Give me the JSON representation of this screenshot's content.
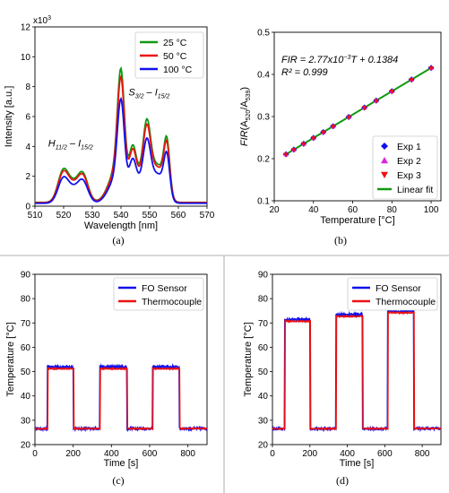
{
  "captions": [
    "(a)",
    "(b)",
    "(c)",
    "(d)"
  ],
  "colors": {
    "red": "#ee1111",
    "blue": "#1111ee",
    "green": "#119911",
    "magenta": "#dd22dd"
  },
  "chart_data": [
    {
      "id": "a",
      "type": "line",
      "xlabel": "Wavelength [nm]",
      "ylabel": "Intensity [a.u.]",
      "y_multiplier_label": "x10",
      "y_multiplier_exp": "3",
      "xlim": [
        510,
        570
      ],
      "ylim": [
        0,
        12
      ],
      "xticks": [
        510,
        520,
        530,
        540,
        550,
        560,
        570
      ],
      "yticks": [
        0,
        2,
        4,
        6,
        8,
        10,
        12
      ],
      "legend_position": "top-right",
      "series": [
        {
          "name": "25 °C",
          "color": "#119911",
          "scale": 1.0
        },
        {
          "name": "50 °C",
          "color": "#ee1111",
          "scale": 0.94
        },
        {
          "name": "100 °C",
          "color": "#1111ee",
          "scale": 0.78
        }
      ],
      "annotations": [
        {
          "text": "H",
          "sub": "11/2",
          "mid": " – I",
          "sub2": "15/2",
          "at": [
            524,
            4.0
          ]
        },
        {
          "text": "S",
          "sub": "3/2",
          "mid": " – I",
          "sub2": "15/2",
          "at": [
            552,
            7.4
          ]
        }
      ]
    },
    {
      "id": "b",
      "type": "scatter",
      "xlabel": "Temperature [°C]",
      "ylabel_main": "FIR",
      "ylabel_num": "520",
      "ylabel_den": "539",
      "xlim": [
        20,
        105
      ],
      "ylim": [
        0.1,
        0.5
      ],
      "xticks": [
        20,
        40,
        60,
        80,
        100
      ],
      "yticks": [
        0.1,
        0.2,
        0.3,
        0.4,
        0.5
      ],
      "legend_position": "bottom-right",
      "equation": "FIR = 2.77x10",
      "equation_exp": "−3",
      "equation_rest": "T + 0.1384",
      "r2": "R² = 0.999",
      "fit": {
        "slope": 0.00277,
        "intercept": 0.1384,
        "x_range": [
          26,
          100
        ]
      },
      "x": [
        26,
        30,
        35,
        40,
        45,
        50,
        58,
        66,
        72,
        80,
        90,
        100
      ],
      "series": [
        {
          "name": "Exp 1",
          "marker": "diamond",
          "color": "#1111ee"
        },
        {
          "name": "Exp 2",
          "marker": "triangle-up",
          "color": "#dd22dd"
        },
        {
          "name": "Exp 3",
          "marker": "triangle-down",
          "color": "#ee1111"
        },
        {
          "name": "Linear fit",
          "marker": "line",
          "color": "#119911"
        }
      ]
    },
    {
      "id": "c",
      "type": "line",
      "xlabel": "Time [s]",
      "ylabel": "Temperature [°C]",
      "xlim": [
        0,
        900
      ],
      "ylim": [
        20,
        90
      ],
      "xticks": [
        0,
        200,
        400,
        600,
        800
      ],
      "yticks": [
        20,
        30,
        40,
        50,
        60,
        70,
        80,
        90
      ],
      "legend_position": "top-right",
      "baseline": 26.5,
      "plateau": 51.5,
      "on_intervals": [
        [
          65,
          200
        ],
        [
          340,
          480
        ],
        [
          615,
          755
        ]
      ],
      "series": [
        {
          "name": "FO Sensor",
          "color": "#1111ee"
        },
        {
          "name": "Thermocouple",
          "color": "#ee1111"
        }
      ]
    },
    {
      "id": "d",
      "type": "line",
      "xlabel": "Time [s]",
      "ylabel": "Temperature [°C]",
      "xlim": [
        0,
        900
      ],
      "ylim": [
        20,
        90
      ],
      "xticks": [
        0,
        200,
        400,
        600,
        800
      ],
      "yticks": [
        20,
        30,
        40,
        50,
        60,
        70,
        80,
        90
      ],
      "legend_position": "top-right",
      "baseline": 26.5,
      "plateaus": [
        71,
        73,
        74.5
      ],
      "on_intervals": [
        [
          65,
          200
        ],
        [
          340,
          480
        ],
        [
          615,
          755
        ]
      ],
      "series": [
        {
          "name": "FO Sensor",
          "color": "#1111ee"
        },
        {
          "name": "Thermocouple",
          "color": "#ee1111"
        }
      ]
    }
  ]
}
